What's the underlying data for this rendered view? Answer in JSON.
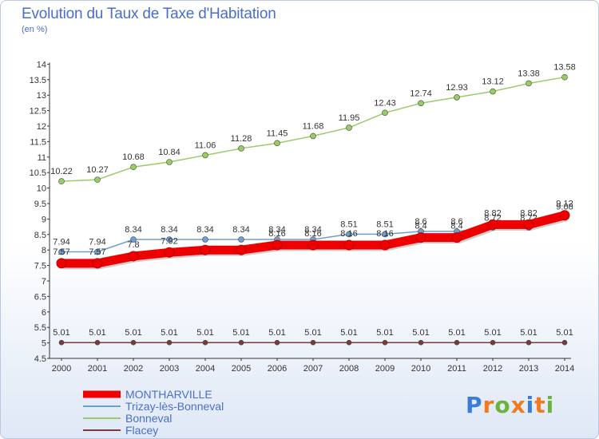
{
  "chart_data": {
    "type": "line",
    "title": "Evolution du Taux de Taxe d'Habitation",
    "subtitle": "(en %)",
    "xlabel": "",
    "ylabel": "",
    "x": [
      "2000",
      "2001",
      "2002",
      "2003",
      "2004",
      "2005",
      "2006",
      "2007",
      "2008",
      "2009",
      "2010",
      "2011",
      "2012",
      "2013",
      "2014"
    ],
    "ylim": [
      4.5,
      14
    ],
    "y_ticks": [
      "4.5",
      "5",
      "5.5",
      "6",
      "6.5",
      "7",
      "7.5",
      "8",
      "8.5",
      "9",
      "9.5",
      "10",
      "10.5",
      "11",
      "11.5",
      "12",
      "12.5",
      "13",
      "13.5",
      "14"
    ],
    "grid": false,
    "legend_position": "bottom-left",
    "series": [
      {
        "name": "MONTHARVILLE",
        "color": "#ee0000",
        "values": [
          7.57,
          7.57,
          7.8,
          7.92,
          8.0,
          8.0,
          8.16,
          8.16,
          8.16,
          8.16,
          8.4,
          8.4,
          8.82,
          8.82,
          9.12
        ],
        "labels": [
          "7.57",
          "7.57",
          "7.8",
          "7.92",
          "",
          "",
          "8.16",
          "8.16",
          "8.16",
          "8.16",
          "8.4",
          "8.4",
          "8.82",
          "8.82",
          "9.12"
        ]
      },
      {
        "name": "Trizay-lès-Bonneval",
        "color": "#6c9fd4",
        "values": [
          7.94,
          7.94,
          8.34,
          8.34,
          8.34,
          8.34,
          8.34,
          8.34,
          8.51,
          8.51,
          8.6,
          8.6,
          8.72,
          8.72,
          9.08
        ],
        "labels": [
          "7.94",
          "7.94",
          "8.34",
          "8.34",
          "8.34",
          "8.34",
          "8.34",
          "8.34",
          "8.51",
          "8.51",
          "8.6",
          "8.6",
          "8.72",
          "8.72",
          "9.08"
        ]
      },
      {
        "name": "Bonneval",
        "color": "#99cc66",
        "values": [
          10.22,
          10.27,
          10.68,
          10.84,
          11.06,
          11.28,
          11.45,
          11.68,
          11.95,
          12.43,
          12.74,
          12.93,
          13.12,
          13.38,
          13.58
        ],
        "labels": [
          "10.22",
          "10.27",
          "10.68",
          "10.84",
          "11.06",
          "11.28",
          "11.45",
          "11.68",
          "11.95",
          "12.43",
          "12.74",
          "12.93",
          "13.12",
          "13.38",
          "13.58"
        ]
      },
      {
        "name": "Flacey",
        "color": "#7a3a3a",
        "values": [
          5.01,
          5.01,
          5.01,
          5.01,
          5.01,
          5.01,
          5.01,
          5.01,
          5.01,
          5.01,
          5.01,
          5.01,
          5.01,
          5.01,
          5.01
        ],
        "labels": [
          "5.01",
          "5.01",
          "5.01",
          "5.01",
          "5.01",
          "5.01",
          "5.01",
          "5.01",
          "5.01",
          "5.01",
          "5.01",
          "5.01",
          "5.01",
          "5.01",
          "5.01"
        ]
      }
    ]
  },
  "logo": {
    "text": "Proxiti"
  }
}
